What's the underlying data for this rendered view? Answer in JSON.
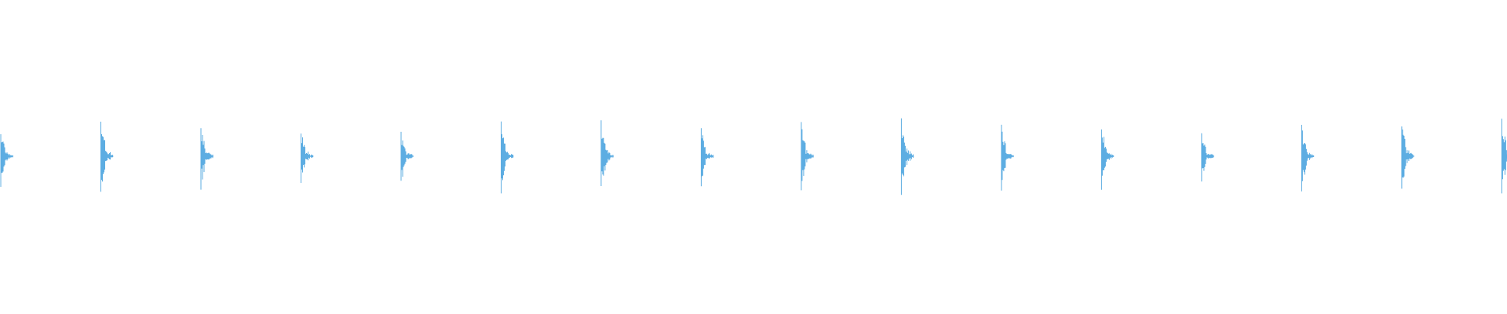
{
  "chart_data": {
    "type": "line",
    "title": "",
    "xlabel": "",
    "ylabel": "",
    "grid": false,
    "legend": "none",
    "axes_visible": false,
    "ylim": [
      -1,
      1
    ],
    "color": "#5dade2",
    "bursts": [
      {
        "onset": 0.0,
        "peak": 0.2
      },
      {
        "onset": 1.0,
        "peak": 0.28
      },
      {
        "onset": 2.0,
        "peak": 0.22
      },
      {
        "onset": 3.0,
        "peak": 0.19
      },
      {
        "onset": 4.0,
        "peak": 0.19
      },
      {
        "onset": 5.0,
        "peak": 0.24
      },
      {
        "onset": 6.0,
        "peak": 0.26
      },
      {
        "onset": 7.0,
        "peak": 0.21
      },
      {
        "onset": 8.0,
        "peak": 0.23
      },
      {
        "onset": 9.0,
        "peak": 0.3
      },
      {
        "onset": 10.0,
        "peak": 0.22
      },
      {
        "onset": 11.0,
        "peak": 0.23
      },
      {
        "onset": 12.0,
        "peak": 0.17
      },
      {
        "onset": 13.0,
        "peak": 0.24
      },
      {
        "onset": 14.0,
        "peak": 0.27
      },
      {
        "onset": 15.0,
        "peak": 0.28
      }
    ],
    "xlim": [
      0,
      15.06
    ]
  }
}
